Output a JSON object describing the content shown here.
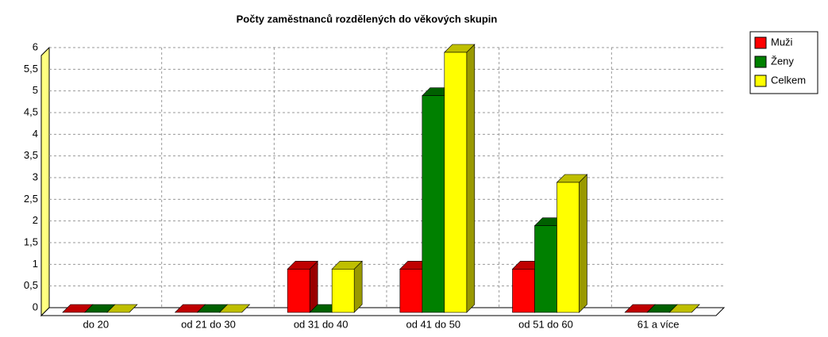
{
  "chart_data": {
    "type": "bar3d",
    "title": "Počty zaměstnanců rozdělených do věkových skupin",
    "categories": [
      "do 20",
      "od 21 do 30",
      "od 31 do 40",
      "od 41 do 50",
      "od 51 do 60",
      "61 a více"
    ],
    "series": [
      {
        "name": "Muži",
        "color": "#ff0000",
        "values": [
          0,
          0,
          1,
          1,
          1,
          0
        ]
      },
      {
        "name": "Ženy",
        "color": "#008000",
        "values": [
          0,
          0,
          0,
          5,
          2,
          0
        ]
      },
      {
        "name": "Celkem",
        "color": "#ffff00",
        "values": [
          0,
          0,
          1,
          6,
          3,
          0
        ]
      }
    ],
    "ylim": [
      0,
      6
    ],
    "yticks": [
      0,
      {
        "value": 0.5,
        "label": "0,5"
      },
      1,
      {
        "value": 1.5,
        "label": "1,5"
      },
      2,
      {
        "value": 2.5,
        "label": "2,5"
      },
      3,
      {
        "value": 3.5,
        "label": "3,5"
      },
      4,
      {
        "value": 4.5,
        "label": "4,5"
      },
      5,
      {
        "value": 5.5,
        "label": "5,5"
      },
      6
    ],
    "grid": true,
    "legend": "right"
  }
}
